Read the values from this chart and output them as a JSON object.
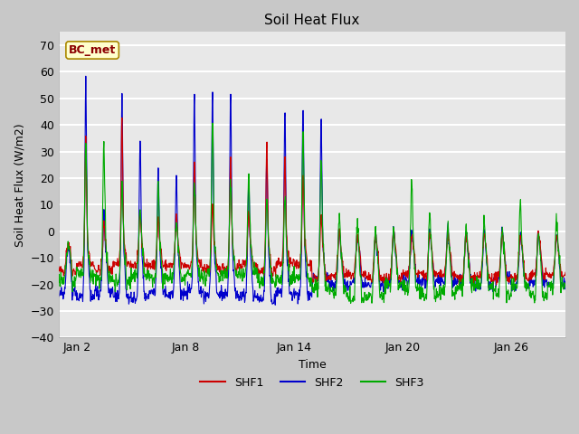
{
  "title": "Soil Heat Flux",
  "xlabel": "Time",
  "ylabel": "Soil Heat Flux (W/m2)",
  "ylim": [
    -40,
    75
  ],
  "yticks": [
    -40,
    -30,
    -20,
    -10,
    0,
    10,
    20,
    30,
    40,
    50,
    60,
    70
  ],
  "fig_bg_color": "#c8c8c8",
  "plot_bg_color": "#e8e8e8",
  "shf1_color": "#cc0000",
  "shf2_color": "#0000cc",
  "shf3_color": "#00aa00",
  "annotation_text": "BC_met",
  "annotation_bg": "#ffffcc",
  "annotation_border": "#aa8800",
  "annotation_text_color": "#8b0000",
  "legend_labels": [
    "SHF1",
    "SHF2",
    "SHF3"
  ],
  "n_days": 28,
  "seed": 42,
  "xtick_positions": [
    1,
    7,
    13,
    19,
    25
  ],
  "xtick_labels": [
    "Jan 2",
    "Jan 8",
    "Jan 14",
    "Jan 20",
    "Jan 26"
  ]
}
